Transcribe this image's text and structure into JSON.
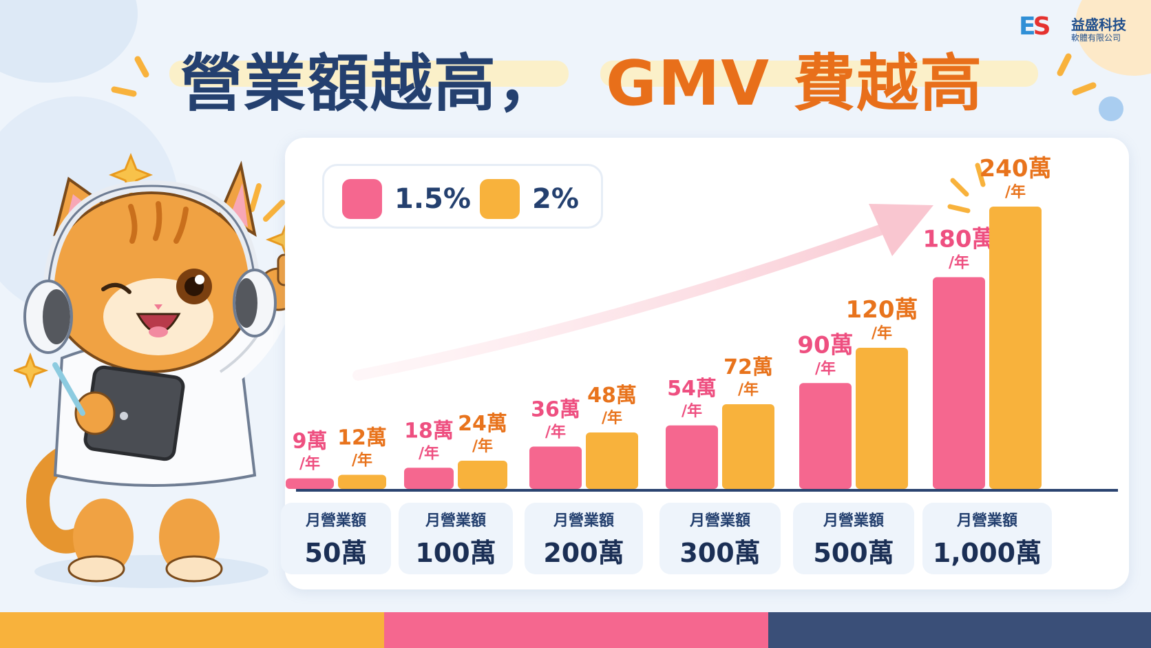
{
  "title": {
    "part1": "營業額越高，",
    "part2": "GMV 費越高"
  },
  "logo": {
    "mark_e": "E",
    "mark_s": "S",
    "name": "益盛科技",
    "sub": "軟體有限公司"
  },
  "colors": {
    "pink": "#f5678f",
    "orange": "#f8b23c",
    "navy": "#24406f",
    "axis": "#2a4370",
    "pink_text": "#ee4f80",
    "orange_text": "#e8731c",
    "bottom_orange": "#f8b23c",
    "bottom_pink": "#f5678f",
    "bottom_navy": "#3a4f78"
  },
  "mascot": {
    "description_icon": "orange-cat-with-headphones-icon"
  },
  "chart_data": {
    "type": "bar",
    "categories": [
      {
        "line1": "月營業額",
        "line2": "50萬"
      },
      {
        "line1": "月營業額",
        "line2": "100萬"
      },
      {
        "line1": "月營業額",
        "line2": "200萬"
      },
      {
        "line1": "月營業額",
        "line2": "300萬"
      },
      {
        "line1": "月營業額",
        "line2": "500萬"
      },
      {
        "line1": "月營業額",
        "line2": "1,000萬"
      }
    ],
    "series": [
      {
        "name": "1.5%",
        "values": [
          9,
          18,
          36,
          54,
          90,
          180
        ],
        "labels": [
          "9萬",
          "18萬",
          "36萬",
          "54萬",
          "90萬",
          "180萬"
        ]
      },
      {
        "name": "2%",
        "values": [
          12,
          24,
          48,
          72,
          120,
          240
        ],
        "labels": [
          "12萬",
          "24萬",
          "48萬",
          "72萬",
          "120萬",
          "240萬"
        ]
      }
    ],
    "unit_suffix": "/年",
    "ylim": [
      0,
      240
    ],
    "legend_position": "top-left",
    "grid": false
  }
}
